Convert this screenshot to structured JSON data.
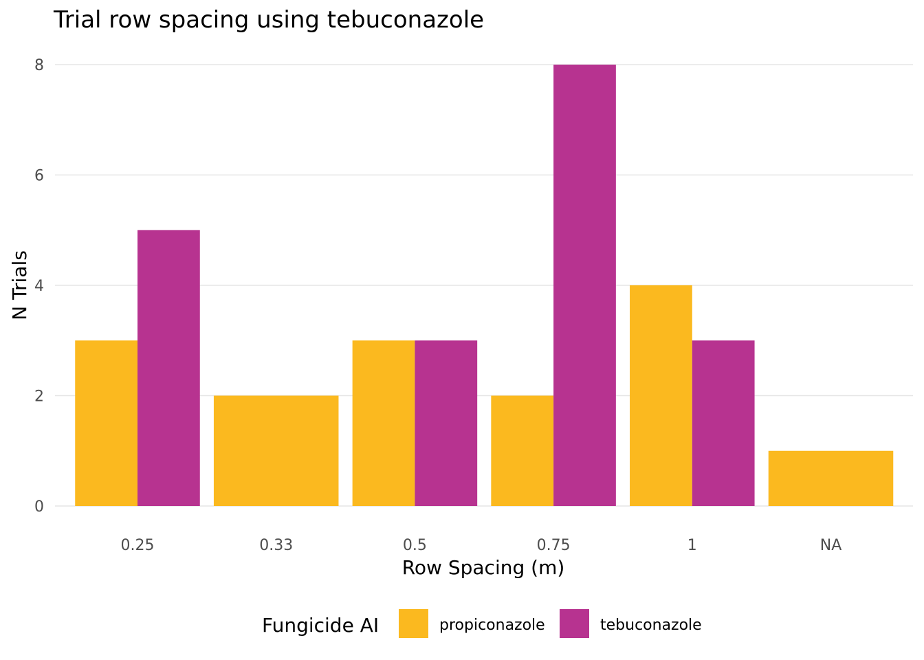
{
  "chart_data": {
    "type": "bar",
    "title": "Trial row spacing using tebuconazole",
    "xlabel": "Row Spacing (m)",
    "ylabel": "N Trials",
    "categories": [
      "0.25",
      "0.33",
      "0.5",
      "0.75",
      "1",
      "NA"
    ],
    "series": [
      {
        "name": "propiconazole",
        "color": "#FBB91F",
        "values": [
          3,
          2,
          3,
          2,
          4,
          1
        ]
      },
      {
        "name": "tebuconazole",
        "color": "#B73390",
        "values": [
          5,
          null,
          3,
          8,
          3,
          null
        ]
      }
    ],
    "ylim": [
      0,
      8
    ],
    "yticks": [
      0,
      2,
      4,
      6,
      8
    ],
    "grid": true,
    "legend": {
      "title": "Fungicide AI",
      "position": "bottom"
    }
  }
}
